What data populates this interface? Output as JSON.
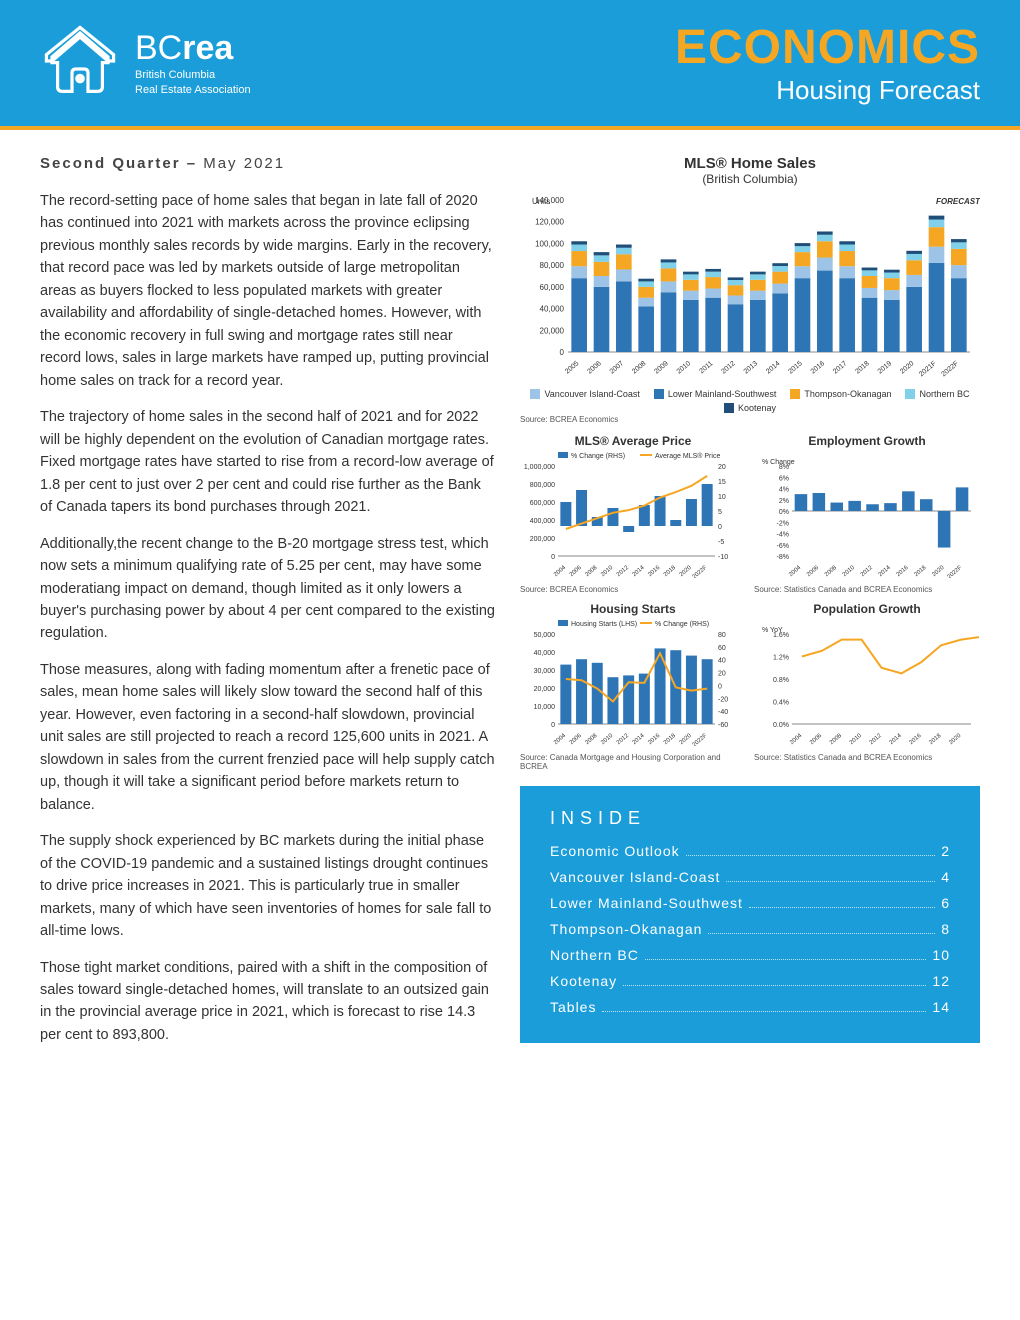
{
  "header": {
    "brand_bc": "BC",
    "brand_rea": "rea",
    "brand_line1": "British Columbia",
    "brand_line2": "Real Estate Association",
    "title": "ECONOMICS",
    "subtitle": "Housing Forecast"
  },
  "quarter_bold": "Second Quarter – ",
  "quarter_rest": "May 2021",
  "paragraphs": [
    "The record-setting pace of home sales that began in late fall of 2020 has continued into 2021 with markets across the province eclipsing previous monthly sales records by wide margins. Early in the recovery, that record pace was led by markets outside of large metropolitan areas as buyers flocked to less populated markets with greater availability and affordability of single-detached homes. However, with the economic recovery in full swing and mortgage rates still near record lows, sales in large markets have ramped up, putting provincial home sales on track for a record year.",
    "The trajectory of home sales in the second half of 2021 and for 2022 will be highly dependent on the evolution of Canadian mortgage rates. Fixed mortgage rates have started to rise from a record-low average of 1.8 per cent to just over 2 per cent and could rise further as the Bank of Canada tapers its bond purchases through 2021.",
    "Additionally,the recent change to the B-20 mortgage stress test, which now sets a minimum qualifying rate of 5.25 per cent, may have some moderatiang impact on demand, though limited as it only lowers a buyer's purchasing power by about 4 per cent compared to the existing regulation.",
    "Those measures, along with fading momentum after a frenetic pace of sales, mean home sales will likely slow toward the second half of this year. However, even factoring in a second-half slowdown, provincial unit sales are still projected to reach a record 125,600 units in 2021. A slowdown in sales from the current frenzied pace will help supply catch up, though it will take a significant period before markets return to balance.",
    "The supply shock experienced by BC markets during the initial phase of the COVID-19 pandemic and a sustained listings drought continues to drive price increases in 2021. This is particularly true in smaller markets, many of which have seen inventories of homes for sale fall to all-time lows.",
    "Those tight market conditions, paired with a shift in the composition of sales toward single-detached homes, will translate to an outsized gain in the provincial average price in 2021, which is forecast to rise 14.3 per cent to 893,800."
  ],
  "mls_sales": {
    "title": "MLS® Home Sales",
    "subtitle": "(British Columbia)",
    "ylabel": "Units",
    "forecast_label": "FORECAST",
    "ymax": 140000,
    "ytick": 20000,
    "years": [
      "2005",
      "2006",
      "2007",
      "2008",
      "2009",
      "2010",
      "2011",
      "2012",
      "2013",
      "2014",
      "2015",
      "2016",
      "2017",
      "2018",
      "2019",
      "2020",
      "2021F",
      "2022F"
    ],
    "series_colors": {
      "lm": "#2e75b6",
      "vic": "#9dc3e6",
      "to": "#f5a623",
      "nbc": "#7fd0e8",
      "koot": "#1f4e79"
    },
    "stacks": [
      {
        "lm": 68000,
        "vic": 11000,
        "to": 14000,
        "nbc": 6000,
        "koot": 3000
      },
      {
        "lm": 60000,
        "vic": 10000,
        "to": 13000,
        "nbc": 6000,
        "koot": 3000
      },
      {
        "lm": 65000,
        "vic": 11000,
        "to": 14000,
        "nbc": 6000,
        "koot": 3000
      },
      {
        "lm": 42000,
        "vic": 8000,
        "to": 10000,
        "nbc": 5000,
        "koot": 2500
      },
      {
        "lm": 55000,
        "vic": 10000,
        "to": 12000,
        "nbc": 5500,
        "koot": 2800
      },
      {
        "lm": 48000,
        "vic": 8500,
        "to": 10000,
        "nbc": 5000,
        "koot": 2500
      },
      {
        "lm": 50000,
        "vic": 8500,
        "to": 10500,
        "nbc": 5000,
        "koot": 2500
      },
      {
        "lm": 44000,
        "vic": 8000,
        "to": 9500,
        "nbc": 4800,
        "koot": 2400
      },
      {
        "lm": 48000,
        "vic": 8500,
        "to": 10000,
        "nbc": 5000,
        "koot": 2500
      },
      {
        "lm": 54000,
        "vic": 9000,
        "to": 11000,
        "nbc": 5200,
        "koot": 2600
      },
      {
        "lm": 68000,
        "vic": 11000,
        "to": 13000,
        "nbc": 5500,
        "koot": 2800
      },
      {
        "lm": 75000,
        "vic": 12000,
        "to": 15000,
        "nbc": 6000,
        "koot": 3000
      },
      {
        "lm": 68000,
        "vic": 11000,
        "to": 14000,
        "nbc": 6000,
        "koot": 3000
      },
      {
        "lm": 50000,
        "vic": 9000,
        "to": 11000,
        "nbc": 5200,
        "koot": 2600
      },
      {
        "lm": 48000,
        "vic": 9000,
        "to": 11000,
        "nbc": 5200,
        "koot": 2600
      },
      {
        "lm": 60000,
        "vic": 11000,
        "to": 13500,
        "nbc": 5800,
        "koot": 2900
      },
      {
        "lm": 82000,
        "vic": 15000,
        "to": 18000,
        "nbc": 7000,
        "koot": 3600
      },
      {
        "lm": 68000,
        "vic": 12000,
        "to": 15000,
        "nbc": 6000,
        "koot": 3000
      }
    ],
    "legend": [
      {
        "label": "Vancouver Island-Coast",
        "color": "#9dc3e6"
      },
      {
        "label": "Lower Mainland-Southwest",
        "color": "#2e75b6"
      },
      {
        "label": "Thompson-Okanagan",
        "color": "#f5a623"
      },
      {
        "label": "Northern BC",
        "color": "#7fd0e8"
      },
      {
        "label": "Kootenay",
        "color": "#1f4e79"
      }
    ],
    "source": "Source: BCREA Economics"
  },
  "avg_price": {
    "title": "MLS® Average Price",
    "leg1": "% Change (RHS)",
    "leg2": "Average MLS® Price",
    "ymax": 1000000,
    "ytick": 200000,
    "rmin": -10,
    "rmax": 20,
    "rtick": 5,
    "years": [
      "2004",
      "2006",
      "2008",
      "2010",
      "2012",
      "2014",
      "2016",
      "2018",
      "2020",
      "2022F"
    ],
    "bars": [
      8,
      12,
      3,
      6,
      -2,
      7,
      10,
      2,
      9,
      14
    ],
    "line": [
      300000,
      360000,
      420000,
      480000,
      510000,
      560000,
      650000,
      710000,
      780000,
      890000
    ],
    "bar_color": "#2e75b6",
    "line_color": "#f5a623",
    "source": "Source: BCREA Economics"
  },
  "employment": {
    "title": "Employment Growth",
    "ylabel": "% Change",
    "ymin": -8,
    "ymax": 8,
    "ytick": 2,
    "years": [
      "2004",
      "2006",
      "2008",
      "2010",
      "2012",
      "2014",
      "2016",
      "2018",
      "2020",
      "2022F"
    ],
    "bars": [
      3,
      3.2,
      1.5,
      1.8,
      1.2,
      1.4,
      3.5,
      2.1,
      -6.5,
      4.2
    ],
    "bar_color": "#2e75b6",
    "source": "Source: Statistics Canada and BCREA Economics"
  },
  "housing_starts": {
    "title": "Housing Starts",
    "leg1": "Housing Starts (LHS)",
    "leg2": "% Change (RHS)",
    "ymax": 50000,
    "ytick": 10000,
    "rmin": -60,
    "rmax": 80,
    "rtick": 20,
    "years": [
      "2004",
      "2006",
      "2008",
      "2010",
      "2012",
      "2014",
      "2016",
      "2018",
      "2020",
      "2022F"
    ],
    "bars": [
      33000,
      36000,
      34000,
      26000,
      27000,
      28000,
      42000,
      41000,
      38000,
      36000
    ],
    "line": [
      10,
      8,
      -5,
      -25,
      5,
      4,
      50,
      -3,
      -8,
      -5
    ],
    "bar_color": "#2e75b6",
    "line_color": "#f5a623",
    "source": "Source: Canada Mortgage and Housing Corporation and BCREA"
  },
  "population": {
    "title": "Population Growth",
    "ylabel": "% YoY",
    "ymin": 0,
    "ymax": 1.6,
    "ytick": 0.4,
    "years": [
      "2004",
      "2006",
      "2008",
      "2010",
      "2012",
      "2014",
      "2016",
      "2018",
      "2020"
    ],
    "line": [
      1.2,
      1.3,
      1.5,
      1.5,
      1.0,
      0.9,
      1.1,
      1.4,
      1.5,
      1.55,
      1.5,
      1.0
    ],
    "line_color": "#f5a623",
    "source": "Source: Statistics Canada and BCREA Economics"
  },
  "inside": {
    "title": "INSIDE",
    "items": [
      {
        "label": "Economic Outlook",
        "page": "2"
      },
      {
        "label": "Vancouver Island-Coast",
        "page": "4"
      },
      {
        "label": "Lower Mainland-Southwest",
        "page": "6"
      },
      {
        "label": "Thompson-Okanagan",
        "page": "8"
      },
      {
        "label": "Northern BC",
        "page": "10"
      },
      {
        "label": "Kootenay",
        "page": "12"
      },
      {
        "label": "Tables",
        "page": "14"
      }
    ]
  }
}
